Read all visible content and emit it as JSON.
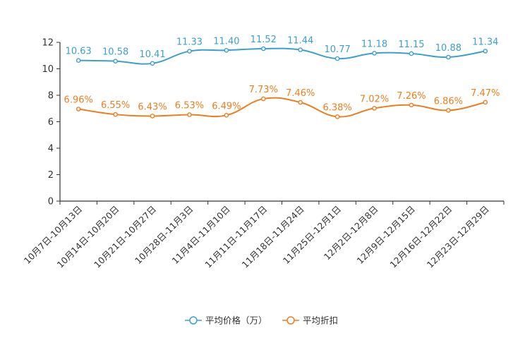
{
  "chart_data": {
    "type": "line",
    "title": "",
    "xlabel": "",
    "ylabel": "",
    "ylim": [
      0,
      12
    ],
    "yticks": [
      0,
      2,
      4,
      6,
      8,
      10,
      12
    ],
    "legend_position": "bottom-center",
    "categories": [
      "10月7日-10月13日",
      "10月14日-10月20日",
      "10月21日-10月27日",
      "10月28日-11月3日",
      "11月4日-11月10日",
      "11月11日-11月17日",
      "11月18日-11月24日",
      "11月25日-12月1日",
      "12月2日-12月8日",
      "12月9日-12月15日",
      "12月16日-12月22日",
      "12月23日-12月29日"
    ],
    "series": [
      {
        "name": "平均价格（万）",
        "color": "#3c9fd1",
        "values": [
          10.63,
          10.58,
          10.41,
          11.33,
          11.4,
          11.52,
          11.44,
          10.77,
          11.18,
          11.15,
          10.88,
          11.34
        ],
        "labels": [
          "10.63",
          "10.58",
          "10.41",
          "11.33",
          "11.40",
          "11.52",
          "11.44",
          "10.77",
          "11.18",
          "11.15",
          "10.88",
          "11.34"
        ]
      },
      {
        "name": "平均折扣",
        "color": "#ee7d1e",
        "values": [
          6.96,
          6.55,
          6.43,
          6.53,
          6.49,
          7.73,
          7.46,
          6.38,
          7.02,
          7.26,
          6.86,
          7.47
        ],
        "labels": [
          "6.96%",
          "6.55%",
          "6.43%",
          "6.53%",
          "6.49%",
          "7.73%",
          "7.46%",
          "6.38%",
          "7.02%",
          "7.26%",
          "6.86%",
          "7.47%"
        ]
      }
    ]
  }
}
